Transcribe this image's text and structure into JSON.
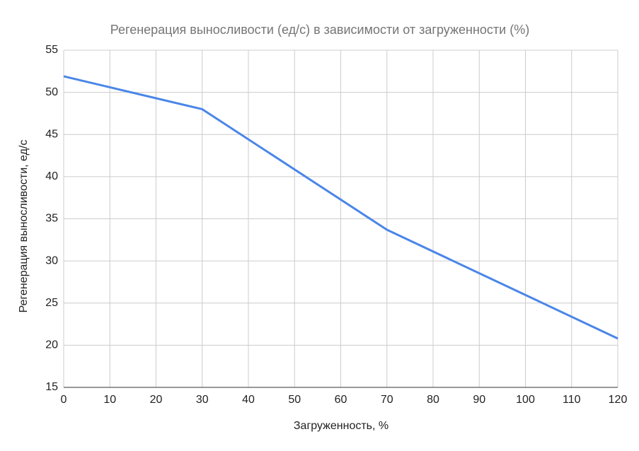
{
  "chart_data": {
    "type": "line",
    "title": "Регенерация выносливости (ед/с) в зависимости от загруженности (%)",
    "x_label": "Загруженность, %",
    "y_label": "Регенерация выносливости, ед/с",
    "x": [
      0,
      30,
      70,
      120
    ],
    "series": [
      {
        "color": "#4a86e8",
        "values": [
          51.9,
          48,
          33.7,
          20.8
        ]
      }
    ],
    "xlim": [
      0,
      120
    ],
    "xticks": [
      0,
      10,
      20,
      30,
      40,
      50,
      60,
      70,
      80,
      90,
      100,
      110,
      120
    ],
    "ylim": [
      15,
      55
    ],
    "yticks": [
      15,
      20,
      25,
      30,
      35,
      40,
      45,
      50,
      55
    ],
    "grid": true
  }
}
